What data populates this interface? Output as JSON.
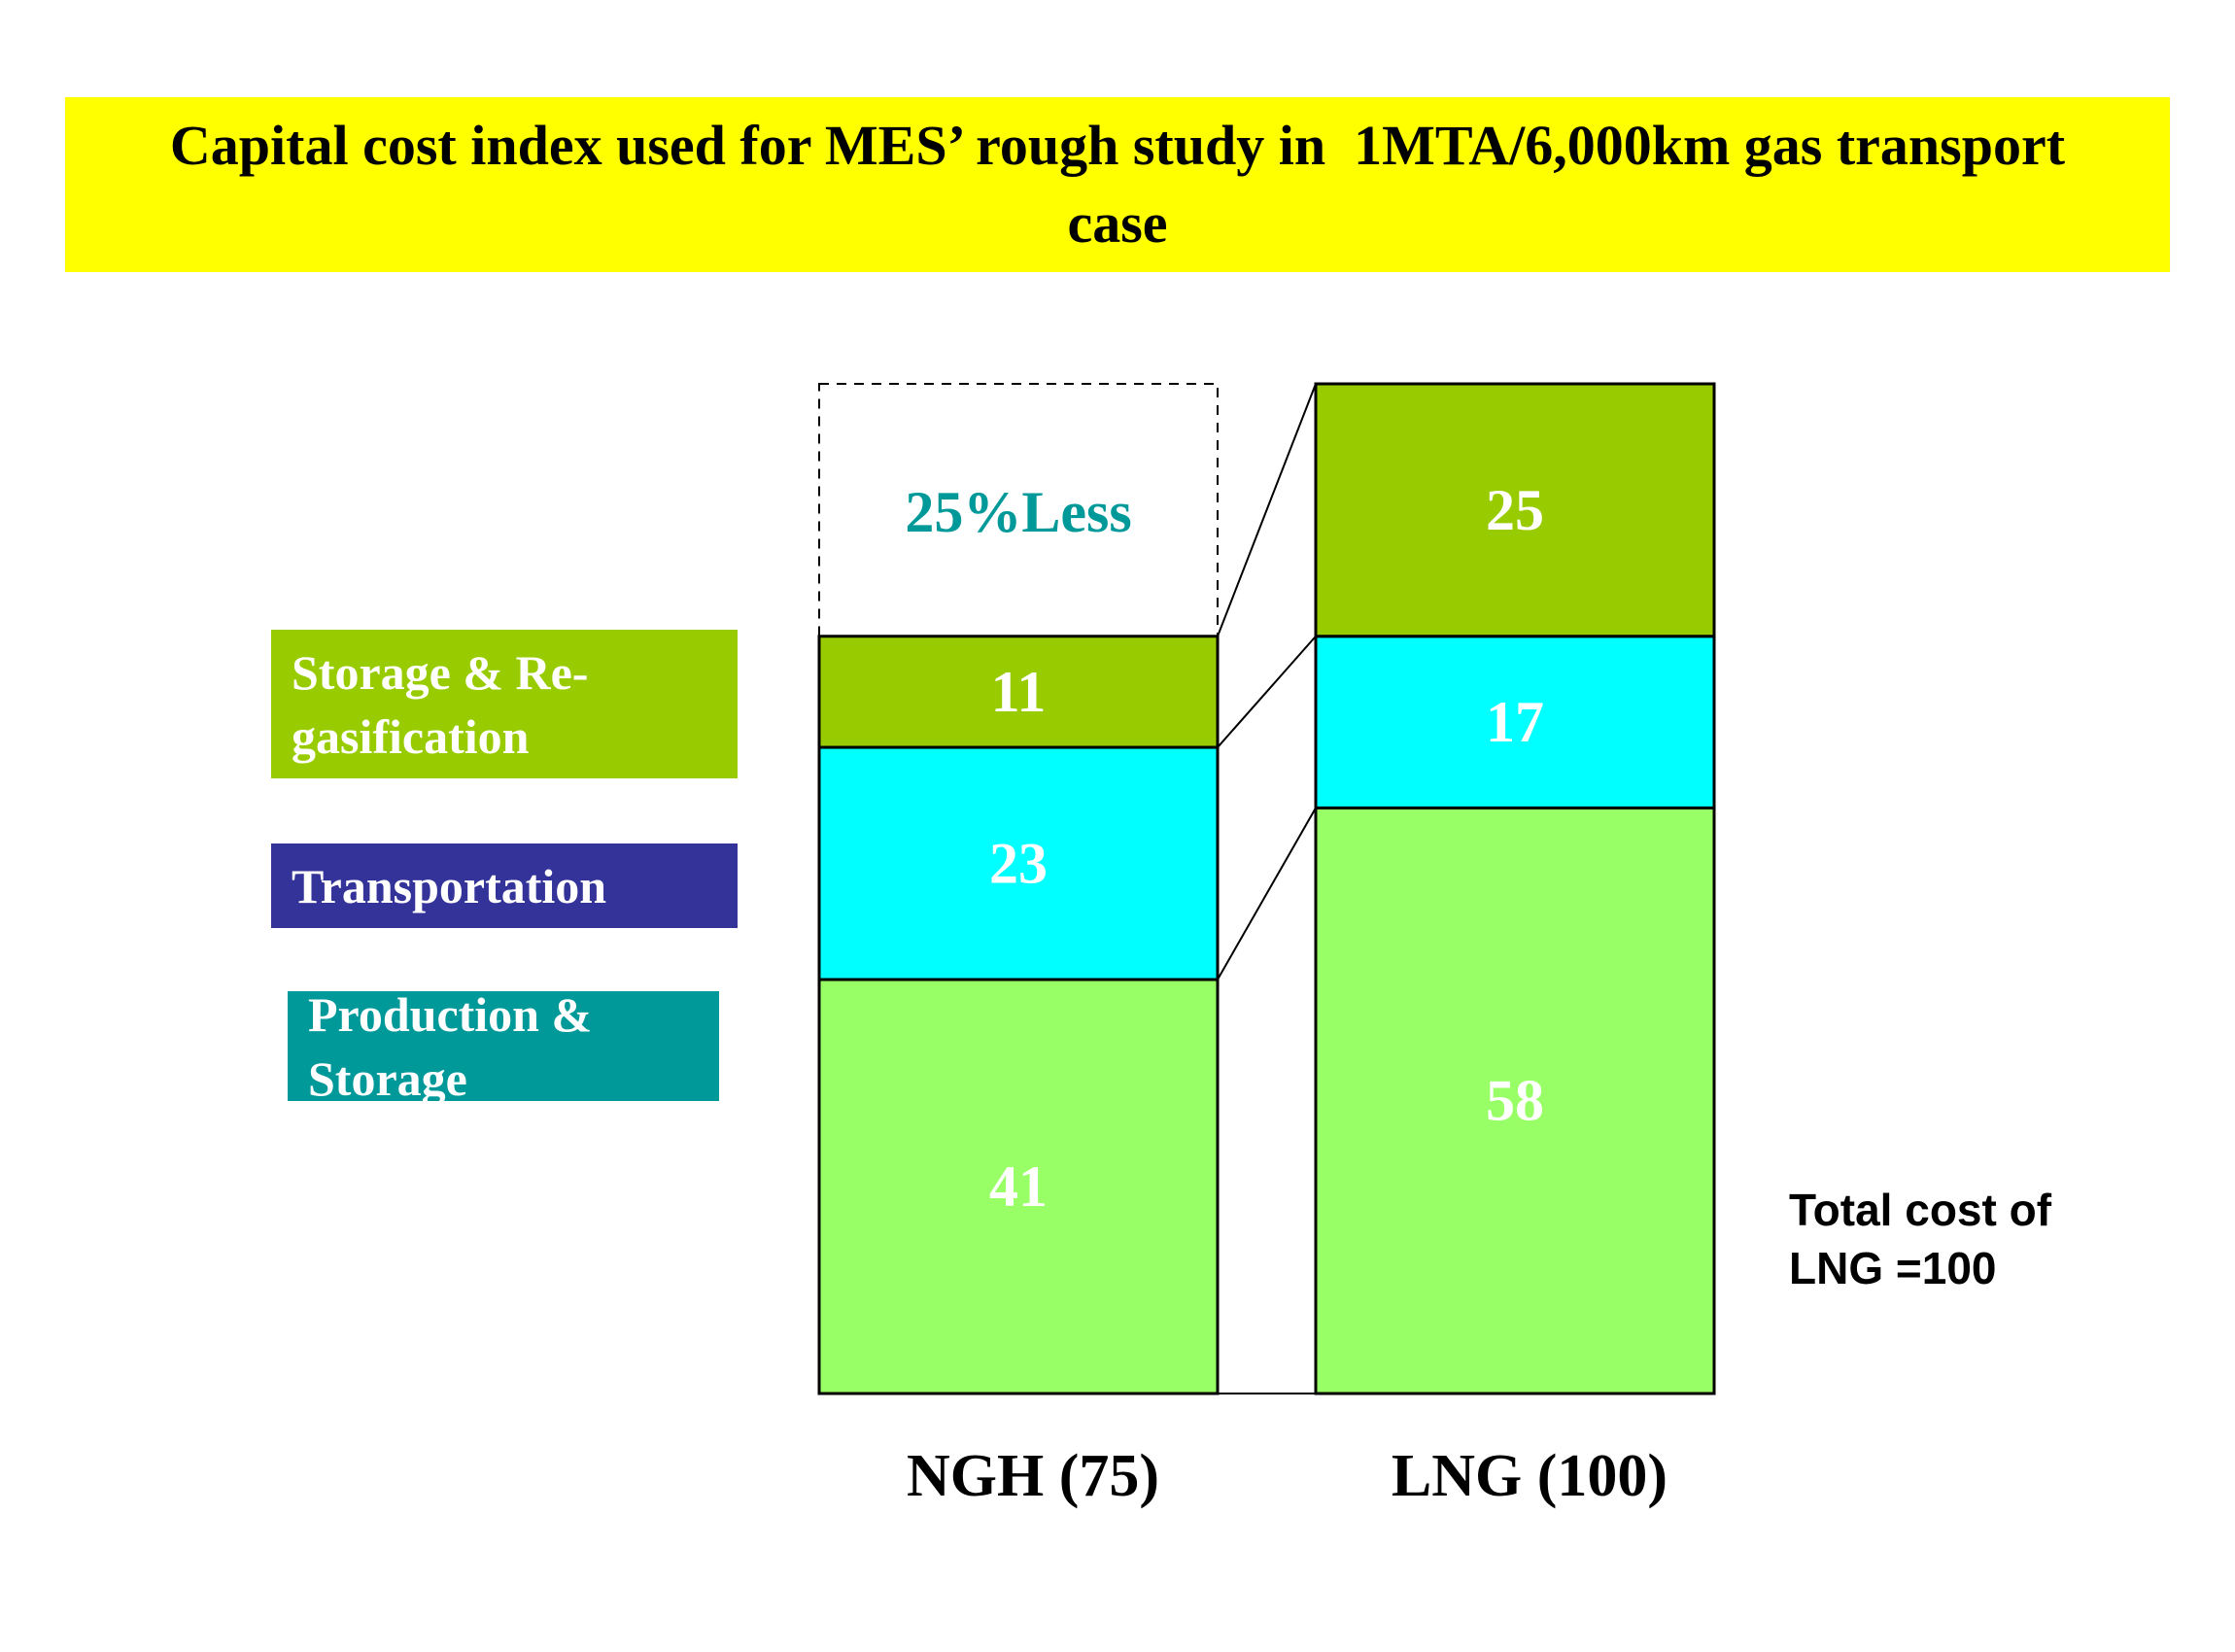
{
  "header": {
    "title": "Capital cost index used for MES’ rough study in  1MTA/6,000km gas transport case"
  },
  "legend": [
    {
      "label": "Storage & Re-gasification",
      "color": "#99cc00"
    },
    {
      "label": "Transportation",
      "color": "#333399"
    },
    {
      "label": "Production & Storage",
      "color": "#009999"
    }
  ],
  "annotation": {
    "savings_label": "25%Less",
    "savings_color": "#009999",
    "note_line1": "Total cost of",
    "note_line2": "LNG =100"
  },
  "chart_data": {
    "type": "bar",
    "stacked": true,
    "title": "Capital cost index used for MES’ rough study in  1MTA/6,000km gas transport case",
    "xlabel": "",
    "ylabel": "",
    "ylim": [
      0,
      100
    ],
    "grid": false,
    "categories": [
      "NGH (75)",
      "LNG (100)"
    ],
    "series": [
      {
        "name": "Production & Storage",
        "values": [
          41,
          58
        ],
        "color": "#99ff66"
      },
      {
        "name": "Transportation",
        "values": [
          23,
          17
        ],
        "color": "#00ffff"
      },
      {
        "name": "Storage & Re-gasification",
        "values": [
          11,
          25
        ],
        "color": "#99cc00"
      }
    ],
    "totals": [
      75,
      100
    ],
    "annotations": [
      {
        "text": "25%Less",
        "category": "NGH (75)",
        "range": [
          75,
          100
        ],
        "style": "dashed-box"
      },
      {
        "text": "Total cost of LNG =100",
        "position": "right"
      }
    ],
    "legend_position": "left"
  }
}
